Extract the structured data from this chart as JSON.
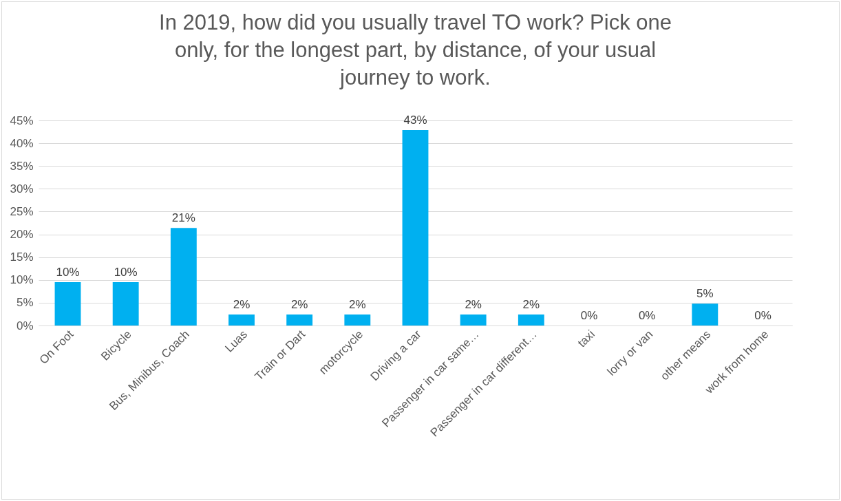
{
  "chart_data": {
    "type": "bar",
    "title": "In 2019, how did you usually travel TO work? Pick one only, for the longest part, by distance, of your usual journey to work.",
    "categories": [
      "On Foot",
      "Bicycle",
      "Bus, Minibus, Coach",
      "Luas",
      "Train or Dart",
      "motorcycle",
      "Driving a car",
      "Passenger in car same…",
      "Passenger in car different…",
      "taxi",
      "lorry or van",
      "other means",
      "work from home"
    ],
    "values": [
      9.5,
      9.5,
      21.4,
      2.4,
      2.4,
      2.4,
      42.9,
      2.4,
      2.4,
      0,
      0,
      4.8,
      0
    ],
    "value_labels": [
      "10%",
      "10%",
      "21%",
      "2%",
      "2%",
      "2%",
      "43%",
      "2%",
      "2%",
      "0%",
      "0%",
      "5%",
      "0%"
    ],
    "color": "#00b0f0",
    "ylim": [
      0,
      45
    ],
    "yticks": [
      {
        "value": 0,
        "label": "0%"
      },
      {
        "value": 5,
        "label": "5%"
      },
      {
        "value": 10,
        "label": "10%"
      },
      {
        "value": 15,
        "label": "15%"
      },
      {
        "value": 20,
        "label": "20%"
      },
      {
        "value": 25,
        "label": "25%"
      },
      {
        "value": 30,
        "label": "30%"
      },
      {
        "value": 35,
        "label": "35%"
      },
      {
        "value": 40,
        "label": "40%"
      },
      {
        "value": 45,
        "label": "45%"
      }
    ],
    "grid": "y"
  }
}
